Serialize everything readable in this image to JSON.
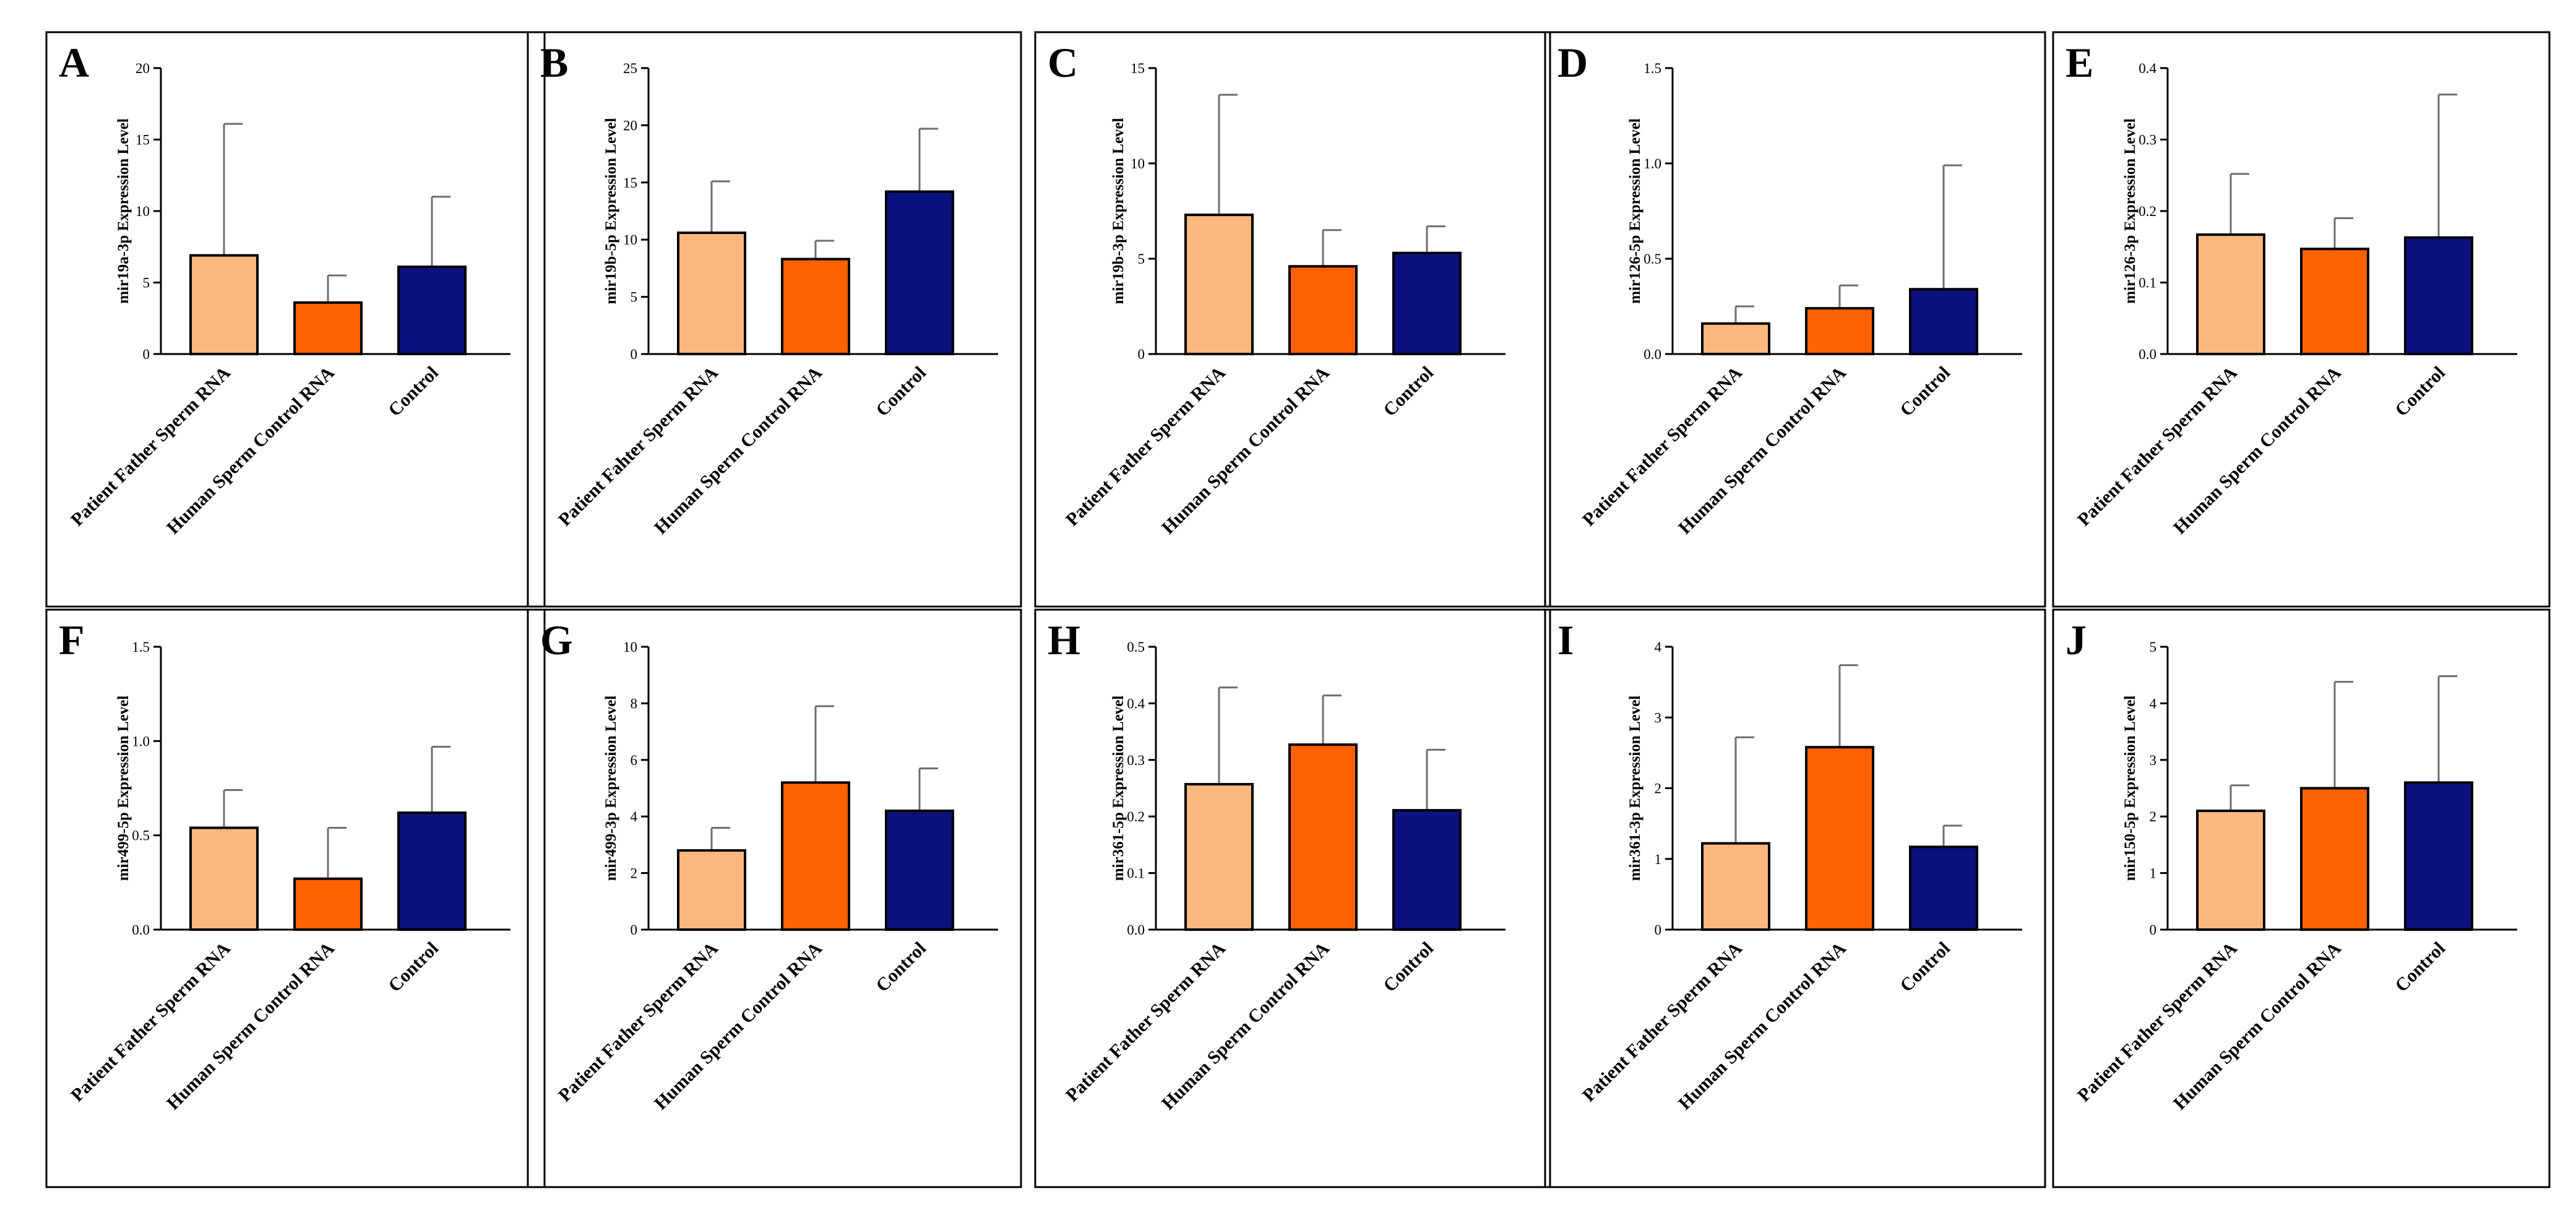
{
  "colors": {
    "Patient Father Sperm RNA": "#FBB77D",
    "Human Sperm Control RNA": "#FD6100",
    "Control": "#0B127E"
  },
  "chart_data": [
    {
      "panel": "A",
      "type": "bar",
      "ylabel": "mir19a-3p Expression  Level",
      "ylim": [
        0,
        20
      ],
      "yticks": [
        "0",
        "5",
        "10",
        "15",
        "20"
      ],
      "categories": [
        "Patient Father Sperm RNA",
        "Human Sperm Control RNA",
        "Control"
      ],
      "values": [
        6.9,
        3.6,
        6.1
      ],
      "errors_upper": [
        16.1,
        5.5,
        11.0
      ]
    },
    {
      "panel": "B",
      "type": "bar",
      "ylabel": "mir19b-5p Expression Level",
      "ylim": [
        0,
        25
      ],
      "yticks": [
        "0",
        "5",
        "10",
        "15",
        "20",
        "25"
      ],
      "categories": [
        "Patient Fahter Sperm RNA",
        "Human Sperm Control RNA",
        "Control"
      ],
      "values": [
        10.6,
        8.3,
        14.2
      ],
      "errors_upper": [
        15.1,
        9.9,
        19.7
      ]
    },
    {
      "panel": "C",
      "type": "bar",
      "ylabel": "mir19b-3p Expression Level",
      "ylim": [
        0,
        15
      ],
      "yticks": [
        "0",
        "5",
        "10",
        "15"
      ],
      "categories": [
        "Patient Father Sperm RNA",
        "Human Sperm Control RNA",
        "Control"
      ],
      "values": [
        7.3,
        4.6,
        5.3
      ],
      "errors_upper": [
        13.6,
        6.5,
        6.7
      ]
    },
    {
      "panel": "D",
      "type": "bar",
      "ylabel": "mir126-5p Expression Level",
      "ylim": [
        0,
        1.5
      ],
      "yticks": [
        "0.0",
        "0.5",
        "1.0",
        "1.5"
      ],
      "categories": [
        "Patient Father Sperm RNA",
        "Human Sperm Control RNA",
        "Control"
      ],
      "values": [
        0.16,
        0.24,
        0.34
      ],
      "errors_upper": [
        0.25,
        0.36,
        0.99
      ]
    },
    {
      "panel": "E",
      "type": "bar",
      "ylabel": "mir126-3p Expression Level",
      "ylim": [
        0,
        0.4
      ],
      "yticks": [
        "0.0",
        "0.1",
        "0.2",
        "0.3",
        "0.4"
      ],
      "categories": [
        "Patient Father Sperm RNA",
        "Human Sperm Control RNA",
        "Control"
      ],
      "values": [
        0.167,
        0.147,
        0.163
      ],
      "errors_upper": [
        0.252,
        0.19,
        0.363
      ]
    },
    {
      "panel": "F",
      "type": "bar",
      "ylabel": "mir499-5p Expression Level",
      "ylim": [
        0,
        1.5
      ],
      "yticks": [
        "0.0",
        "0.5",
        "1.0",
        "1.5"
      ],
      "categories": [
        "Patient Father Sperm RNA",
        "Human Sperm Control RNA",
        "Control"
      ],
      "values": [
        0.54,
        0.27,
        0.62
      ],
      "errors_upper": [
        0.74,
        0.54,
        0.97
      ]
    },
    {
      "panel": "G",
      "type": "bar",
      "ylabel": "mir499-3p Expression Level",
      "ylim": [
        0,
        10
      ],
      "yticks": [
        "0",
        "2",
        "4",
        "6",
        "8",
        "10"
      ],
      "categories": [
        "Patient Father Sperm RNA",
        "Human Sperm Control RNA",
        "Control"
      ],
      "values": [
        2.8,
        5.2,
        4.2
      ],
      "errors_upper": [
        3.6,
        7.9,
        5.7
      ]
    },
    {
      "panel": "H",
      "type": "bar",
      "ylabel": "mir361-5p Expression Level",
      "ylim": [
        0,
        0.5
      ],
      "yticks": [
        "0.0",
        "0.1",
        "0.2",
        "0.3",
        "0.4",
        "0.5"
      ],
      "categories": [
        "Patient Father Sperm RNA",
        "Human Sperm Control RNA",
        "Control"
      ],
      "values": [
        0.257,
        0.327,
        0.211
      ],
      "errors_upper": [
        0.428,
        0.414,
        0.318
      ]
    },
    {
      "panel": "I",
      "type": "bar",
      "ylabel": "mir361-3p Expression  Level",
      "ylim": [
        0,
        4
      ],
      "yticks": [
        "0",
        "1",
        "2",
        "3",
        "4"
      ],
      "categories": [
        "Patient Father Sperm RNA",
        "Human Sperm Control RNA",
        "Control"
      ],
      "values": [
        1.22,
        2.58,
        1.17
      ],
      "errors_upper": [
        2.72,
        3.74,
        1.47
      ]
    },
    {
      "panel": "J",
      "type": "bar",
      "ylabel": "mir150-5p Expression Level",
      "ylim": [
        0,
        5
      ],
      "yticks": [
        "0",
        "1",
        "2",
        "3",
        "4",
        "5"
      ],
      "categories": [
        "Patient Father Sperm RNA",
        "Human Sperm Control RNA",
        "Control"
      ],
      "values": [
        2.1,
        2.5,
        2.6
      ],
      "errors_upper": [
        2.55,
        4.38,
        4.48
      ]
    }
  ]
}
